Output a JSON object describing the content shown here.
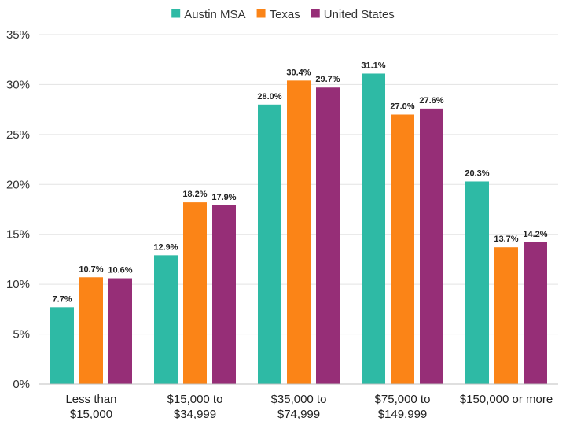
{
  "chart_data": {
    "type": "bar",
    "categories": [
      [
        "Less than",
        "$15,000"
      ],
      [
        "$15,000 to",
        "$34,999"
      ],
      [
        "$35,000 to",
        "$74,999"
      ],
      [
        "$75,000 to",
        "$149,999"
      ],
      [
        "$150,000 or more"
      ]
    ],
    "series": [
      {
        "name": "Austin MSA",
        "color": "#2ebaa5",
        "values": [
          7.7,
          12.9,
          28.0,
          31.1,
          20.3
        ],
        "labels": [
          "7.7%",
          "12.9%",
          "28.0%",
          "31.1%",
          "20.3%"
        ]
      },
      {
        "name": "Texas",
        "color": "#fb8417",
        "values": [
          10.7,
          18.2,
          30.4,
          27.0,
          13.7
        ],
        "labels": [
          "10.7%",
          "18.2%",
          "30.4%",
          "27.0%",
          "13.7%"
        ]
      },
      {
        "name": "United States",
        "color": "#962e77",
        "values": [
          10.6,
          17.9,
          29.7,
          27.6,
          14.2
        ],
        "labels": [
          "10.6%",
          "17.9%",
          "29.7%",
          "27.6%",
          "14.2%"
        ]
      }
    ],
    "y_ticks": [
      0,
      5,
      10,
      15,
      20,
      25,
      30,
      35
    ],
    "y_tick_labels": [
      "0%",
      "5%",
      "10%",
      "15%",
      "20%",
      "25%",
      "30%",
      "35%"
    ],
    "ylim": [
      0,
      35
    ],
    "grid": true,
    "legend_position": "top-center",
    "title": "",
    "xlabel": "",
    "ylabel": ""
  }
}
